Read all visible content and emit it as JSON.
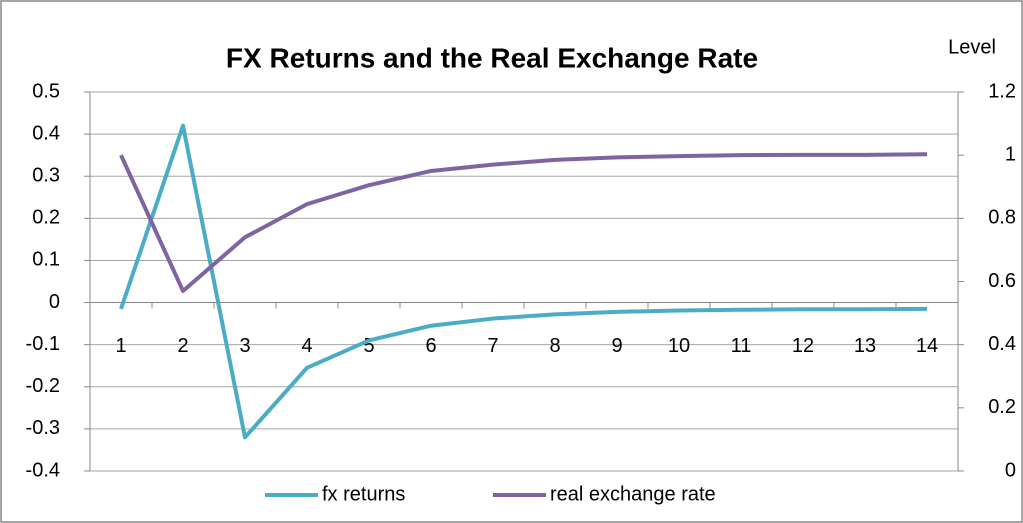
{
  "chart_data": {
    "type": "line",
    "title": "FX Returns and the Real Exchange Rate",
    "y2label": "Level",
    "categories": [
      "1",
      "2",
      "3",
      "4",
      "5",
      "6",
      "7",
      "8",
      "9",
      "10",
      "11",
      "12",
      "13",
      "14"
    ],
    "series": [
      {
        "name": "fx returns",
        "color": "#4bacc6",
        "values": [
          -0.015,
          0.42,
          -0.32,
          -0.155,
          -0.09,
          -0.055,
          -0.038,
          -0.028,
          -0.022,
          -0.019,
          -0.017,
          -0.016,
          -0.016,
          -0.015
        ]
      },
      {
        "name": "real exchange rate",
        "color": "#8064a2",
        "axis": "y2",
        "values": [
          1.0,
          0.57,
          0.74,
          0.845,
          0.905,
          0.95,
          0.97,
          0.985,
          0.993,
          0.997,
          1.0,
          1.001,
          1.001,
          1.003
        ]
      }
    ],
    "ylim": [
      -0.4,
      0.5
    ],
    "yticks": [
      -0.4,
      -0.3,
      -0.2,
      -0.1,
      0,
      0.1,
      0.2,
      0.3,
      0.4,
      0.5
    ],
    "y2lim": [
      0,
      1.2
    ],
    "y2ticks": [
      0,
      0.2,
      0.4,
      0.6,
      0.8,
      1,
      1.2
    ],
    "grid": true
  }
}
